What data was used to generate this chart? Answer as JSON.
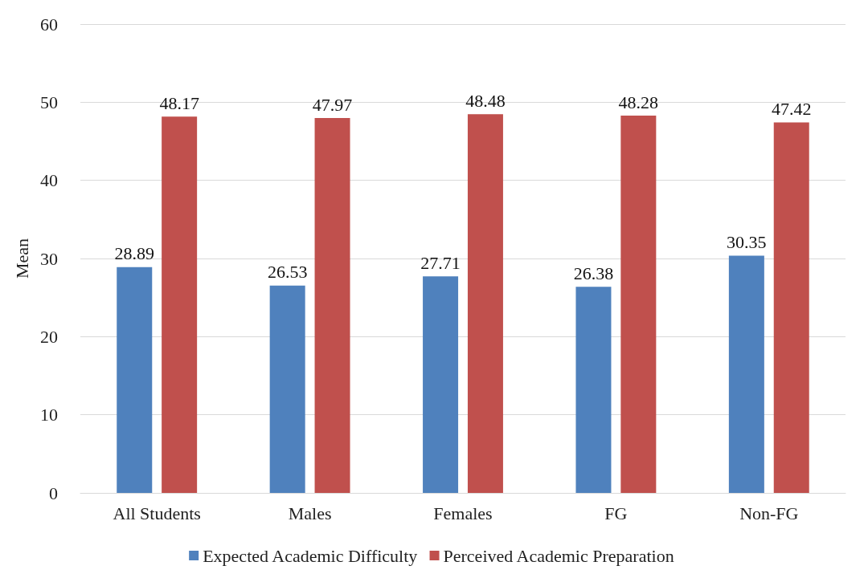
{
  "chart_data": {
    "type": "bar",
    "ylabel": "Mean",
    "categories": [
      "All Students",
      "Males",
      "Females",
      "FG",
      "Non-FG"
    ],
    "series": [
      {
        "name": "Expected Academic Difficulty",
        "color": "#4f81bd",
        "values": [
          28.89,
          26.53,
          27.71,
          26.38,
          30.35
        ]
      },
      {
        "name": "Perceived Academic Preparation",
        "color": "#c0504d",
        "values": [
          48.17,
          47.97,
          48.48,
          48.28,
          47.42
        ]
      }
    ],
    "ylim": [
      0,
      60
    ],
    "yticks": [
      0,
      10,
      20,
      30,
      40,
      50,
      60
    ],
    "grid": "y",
    "legend": "bottom",
    "data_labels": true
  }
}
